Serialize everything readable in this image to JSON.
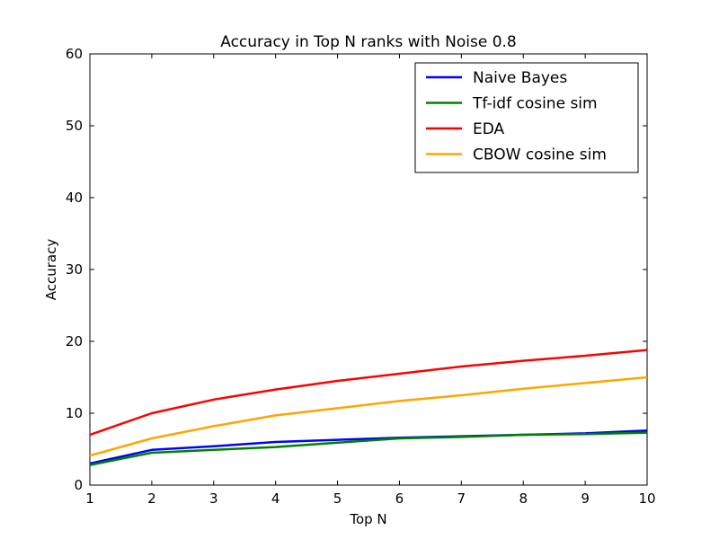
{
  "chart_data": {
    "type": "line",
    "title": "Accuracy in Top N ranks with Noise 0.8",
    "xlabel": "Top N",
    "ylabel": "Accuracy",
    "xlim": [
      1,
      10
    ],
    "ylim": [
      0,
      60
    ],
    "x": [
      1,
      2,
      3,
      4,
      5,
      6,
      7,
      8,
      9,
      10
    ],
    "xticks": [
      "1",
      "2",
      "3",
      "4",
      "5",
      "6",
      "7",
      "8",
      "9",
      "10"
    ],
    "yticks": [
      "0",
      "10",
      "20",
      "30",
      "40",
      "50",
      "60"
    ],
    "grid": false,
    "legend_position": "top-right",
    "series": [
      {
        "name": "Naive Bayes",
        "color": "#0000ff",
        "values": [
          3.0,
          4.9,
          5.4,
          6.0,
          6.3,
          6.6,
          6.8,
          7.0,
          7.2,
          7.6
        ]
      },
      {
        "name": "Tf-idf cosine sim",
        "color": "#008000",
        "values": [
          2.8,
          4.5,
          4.9,
          5.3,
          5.9,
          6.5,
          6.7,
          7.0,
          7.1,
          7.3
        ]
      },
      {
        "name": "EDA",
        "color": "#ff0000",
        "values": [
          7.0,
          10.0,
          11.9,
          13.3,
          14.5,
          15.5,
          16.5,
          17.3,
          18.0,
          18.8
        ]
      },
      {
        "name": "CBOW cosine sim",
        "color": "#ffa500",
        "values": [
          4.1,
          6.5,
          8.2,
          9.7,
          10.7,
          11.7,
          12.5,
          13.4,
          14.2,
          15.0
        ]
      }
    ]
  }
}
